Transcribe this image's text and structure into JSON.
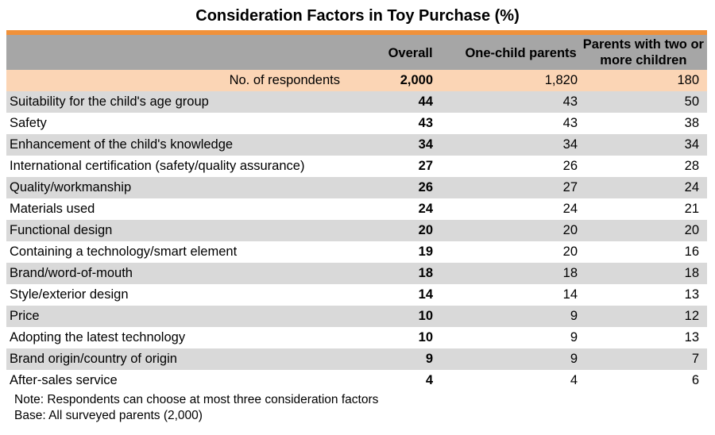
{
  "colors": {
    "accent_orange": "#f0913a",
    "header_gray": "#a6a6a6",
    "respondents_bg": "#fbd5b5",
    "row_shade": "#d9d9d9",
    "row_plain": "#ffffff"
  },
  "chart_data": {
    "type": "table",
    "title": "Consideration Factors in Toy Purchase (%)",
    "columns": [
      "",
      "Overall",
      "One-child parents",
      "Parents with two or more children"
    ],
    "respondents": {
      "label": "No. of respondents",
      "overall": "2,000",
      "one_child": "1,820",
      "two_plus": "180"
    },
    "rows": [
      {
        "factor": "Suitability for the child's age group",
        "overall": 44,
        "one_child": 43,
        "two_plus": 50
      },
      {
        "factor": "Safety",
        "overall": 43,
        "one_child": 43,
        "two_plus": 38
      },
      {
        "factor": "Enhancement of the child's knowledge",
        "overall": 34,
        "one_child": 34,
        "two_plus": 34
      },
      {
        "factor": "International certification (safety/quality assurance)",
        "overall": 27,
        "one_child": 26,
        "two_plus": 28
      },
      {
        "factor": "Quality/workmanship",
        "overall": 26,
        "one_child": 27,
        "two_plus": 24
      },
      {
        "factor": "Materials used",
        "overall": 24,
        "one_child": 24,
        "two_plus": 21
      },
      {
        "factor": "Functional design",
        "overall": 20,
        "one_child": 20,
        "two_plus": 20
      },
      {
        "factor": "Containing a technology/smart element",
        "overall": 19,
        "one_child": 20,
        "two_plus": 16
      },
      {
        "factor": "Brand/word-of-mouth",
        "overall": 18,
        "one_child": 18,
        "two_plus": 18
      },
      {
        "factor": "Style/exterior design",
        "overall": 14,
        "one_child": 14,
        "two_plus": 13
      },
      {
        "factor": "Price",
        "overall": 10,
        "one_child": 9,
        "two_plus": 12
      },
      {
        "factor": "Adopting the latest technology",
        "overall": 10,
        "one_child": 9,
        "two_plus": 13
      },
      {
        "factor": "Brand origin/country of origin",
        "overall": 9,
        "one_child": 9,
        "two_plus": 7
      },
      {
        "factor": "After-sales service",
        "overall": 4,
        "one_child": 4,
        "two_plus": 6
      }
    ],
    "notes": [
      "Note: Respondents can choose at most three consideration factors",
      "Base: All surveyed parents (2,000)"
    ]
  }
}
